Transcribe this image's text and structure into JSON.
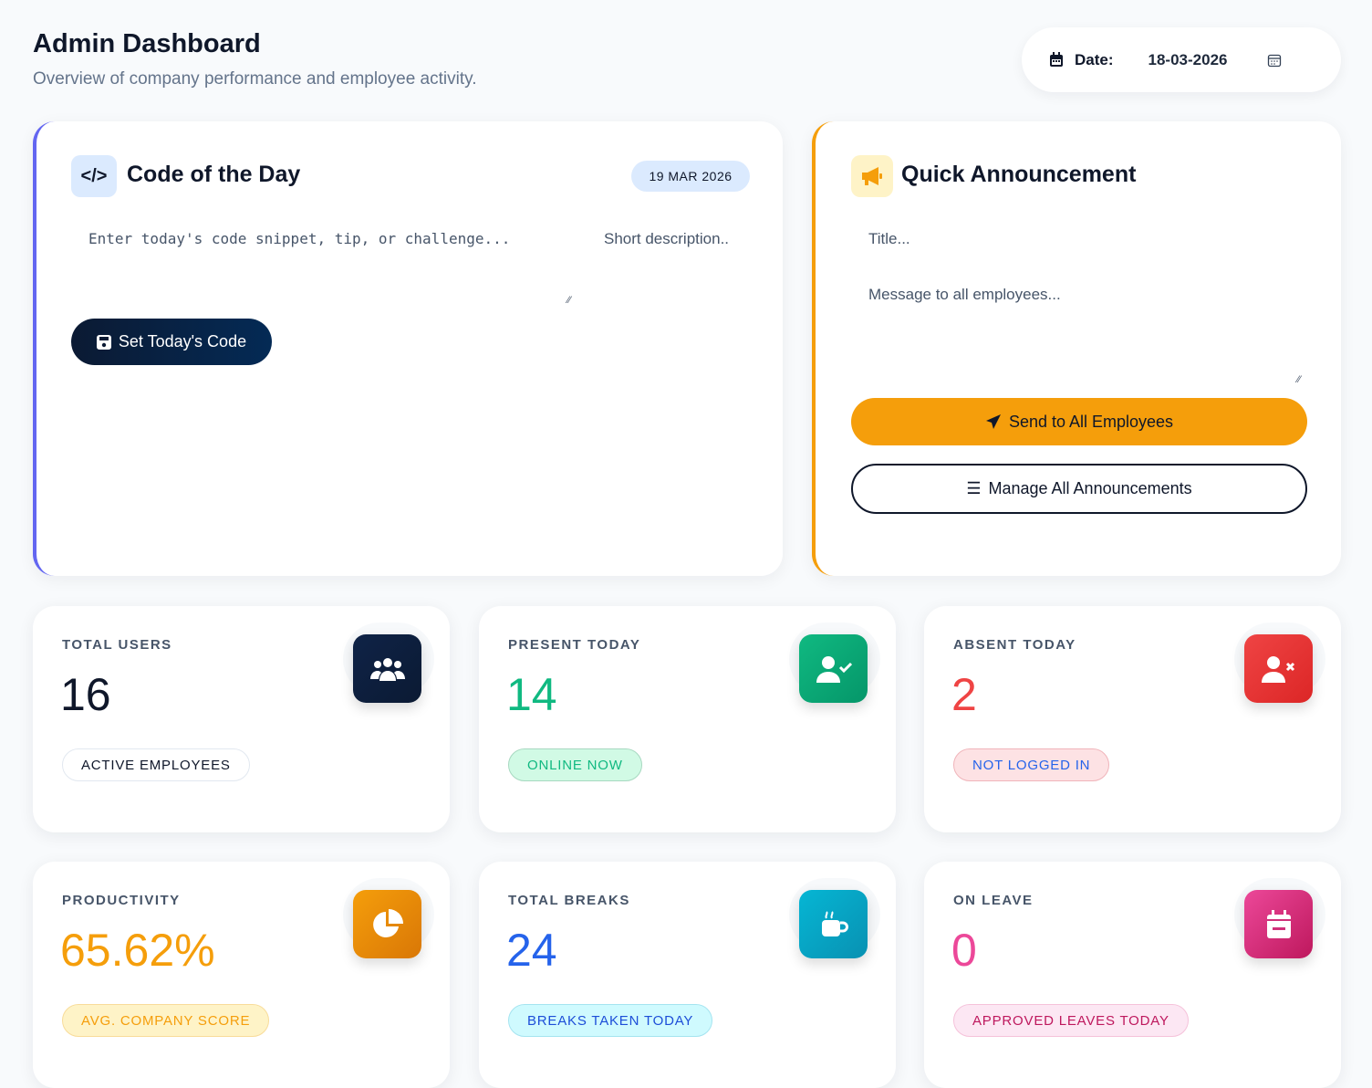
{
  "header": {
    "title": "Admin Dashboard",
    "subtitle": "Overview of company performance and employee activity.",
    "date_label": "Date:",
    "date_value": "18-03-2026"
  },
  "code_card": {
    "title": "Code of the Day",
    "date_badge": "19 MAR 2026",
    "code_placeholder": "Enter today's code snippet, tip, or challenge...",
    "desc_placeholder": "Short description..",
    "button": "Set Today's Code",
    "accent": "#6366f1"
  },
  "announcement": {
    "title": "Quick Announcement",
    "title_placeholder": "Title...",
    "message_placeholder": "Message to all employees...",
    "send_button": "Send to All Employees",
    "manage_button": "Manage All Announcements",
    "accent": "#f59e0b"
  },
  "stats": [
    {
      "label": "TOTAL USERS",
      "value": "16",
      "badge": "ACTIVE EMPLOYEES",
      "icon": "users-icon",
      "color": "#0f172a"
    },
    {
      "label": "PRESENT TODAY",
      "value": "14",
      "badge": "ONLINE NOW",
      "icon": "user-check-icon",
      "color": "#10b981"
    },
    {
      "label": "ABSENT TODAY",
      "value": "2",
      "badge": "NOT LOGGED IN",
      "icon": "user-x-icon",
      "color": "#ef4444"
    },
    {
      "label": "PRODUCTIVITY",
      "value": "65.62%",
      "badge": "AVG. COMPANY SCORE",
      "icon": "pie-chart-icon",
      "color": "#f59e0b"
    },
    {
      "label": "TOTAL BREAKS",
      "value": "24",
      "badge": "BREAKS TAKEN TODAY",
      "icon": "coffee-icon",
      "color": "#2563eb"
    },
    {
      "label": "ON LEAVE",
      "value": "0",
      "badge": "APPROVED LEAVES TODAY",
      "icon": "calendar-icon",
      "color": "#ec4899"
    }
  ]
}
